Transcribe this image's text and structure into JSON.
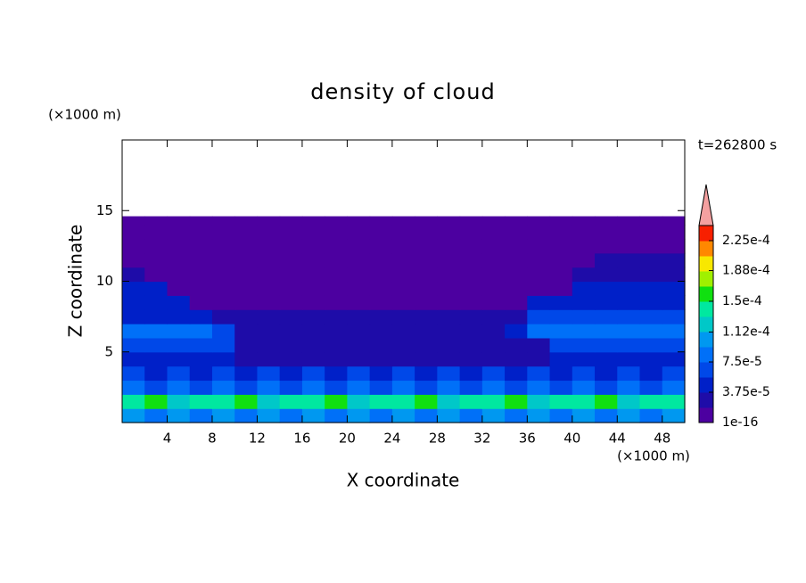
{
  "chart_data": {
    "type": "contour",
    "title": "density of cloud",
    "xlabel": "X coordinate",
    "ylabel": "Z coordinate",
    "xunit": "(×1000 m)",
    "yunit": "(×1000 m)",
    "time_label": "t=262800 s",
    "xlim": [
      0,
      50
    ],
    "ylim": [
      0,
      20
    ],
    "xticks": [
      4,
      8,
      12,
      16,
      20,
      24,
      28,
      32,
      36,
      40,
      44,
      48
    ],
    "yticks": [
      5,
      10,
      15
    ],
    "x_edges": [
      0,
      2,
      4,
      6,
      8,
      10,
      12,
      14,
      16,
      18,
      20,
      22,
      24,
      26,
      28,
      30,
      32,
      34,
      36,
      38,
      40,
      42,
      44,
      46,
      48,
      50
    ],
    "z_edges": [
      0,
      1,
      2,
      3,
      4,
      5,
      6,
      7,
      8,
      9,
      10,
      11,
      12,
      13,
      14,
      14.6
    ],
    "values": [
      [
        0.0001,
        8e-05,
        0.0001,
        9e-05,
        0.0001,
        8e-05,
        0.0001,
        9e-05,
        0.0001,
        8e-05,
        0.0001,
        9e-05,
        0.0001,
        8e-05,
        0.0001,
        9e-05,
        0.0001,
        8e-05,
        0.0001,
        9e-05,
        0.0001,
        8e-05,
        0.0001,
        9e-05,
        0.0001
      ],
      [
        0.00014,
        0.00016,
        0.00013,
        0.00015,
        0.00014,
        0.00016,
        0.00013,
        0.00015,
        0.00014,
        0.00016,
        0.00013,
        0.00015,
        0.00014,
        0.00016,
        0.00013,
        0.00015,
        0.00014,
        0.00016,
        0.00013,
        0.00015,
        0.00014,
        0.00016,
        0.00013,
        0.00015,
        0.00014
      ],
      [
        9e-05,
        7e-05,
        9e-05,
        7e-05,
        9e-05,
        7e-05,
        9e-05,
        7e-05,
        9e-05,
        7e-05,
        9e-05,
        7e-05,
        9e-05,
        7e-05,
        9e-05,
        7e-05,
        9e-05,
        7e-05,
        9e-05,
        7e-05,
        9e-05,
        7e-05,
        9e-05,
        7e-05,
        9e-05
      ],
      [
        6e-05,
        5e-05,
        6e-05,
        5e-05,
        6e-05,
        5e-05,
        6e-05,
        5e-05,
        6e-05,
        5e-05,
        6e-05,
        5e-05,
        6e-05,
        5e-05,
        6e-05,
        5e-05,
        6e-05,
        5e-05,
        6e-05,
        5e-05,
        6e-05,
        5e-05,
        6e-05,
        5e-05,
        6e-05
      ],
      [
        4.5e-05,
        4.5e-05,
        4.5e-05,
        4.5e-05,
        4.5e-05,
        3e-05,
        3e-05,
        3e-05,
        3e-05,
        3e-05,
        3e-05,
        3e-05,
        3e-05,
        3e-05,
        3e-05,
        3e-05,
        3e-05,
        3e-05,
        3e-05,
        4.5e-05,
        4.5e-05,
        4.5e-05,
        4.5e-05,
        4.5e-05,
        4.5e-05
      ],
      [
        7e-05,
        7e-05,
        7e-05,
        7e-05,
        7e-05,
        2.5e-05,
        2.5e-05,
        2.5e-05,
        2.5e-05,
        2.5e-05,
        2.5e-05,
        2.5e-05,
        2.5e-05,
        2.5e-05,
        2.5e-05,
        2.5e-05,
        2.5e-05,
        2.5e-05,
        2.5e-05,
        6e-05,
        6e-05,
        6e-05,
        6e-05,
        6e-05,
        6e-05
      ],
      [
        8e-05,
        8e-05,
        8e-05,
        8e-05,
        6e-05,
        2.5e-05,
        2.5e-05,
        2.5e-05,
        2.5e-05,
        2.5e-05,
        2.5e-05,
        2.5e-05,
        2.5e-05,
        2.5e-05,
        2.5e-05,
        2.5e-05,
        2.5e-05,
        5e-05,
        8e-05,
        8e-05,
        8e-05,
        8e-05,
        8e-05,
        8e-05,
        8e-05
      ],
      [
        5e-05,
        5e-05,
        5e-05,
        5e-05,
        2.5e-05,
        2.5e-05,
        2.5e-05,
        2.5e-05,
        2.5e-05,
        2.5e-05,
        2.5e-05,
        2.5e-05,
        2.5e-05,
        2.5e-05,
        2.5e-05,
        2.5e-05,
        2.5e-05,
        2.5e-05,
        6e-05,
        6e-05,
        6e-05,
        6e-05,
        6e-05,
        6e-05,
        6e-05
      ],
      [
        4.5e-05,
        4.5e-05,
        4.5e-05,
        1e-06,
        1e-06,
        1e-06,
        1e-06,
        1e-06,
        1e-06,
        1e-06,
        1e-06,
        1e-06,
        1e-06,
        1e-06,
        1e-06,
        1e-06,
        1e-06,
        1e-06,
        5e-05,
        5e-05,
        5e-05,
        5e-05,
        5e-05,
        5e-05,
        5e-05
      ],
      [
        4e-05,
        4e-05,
        1e-06,
        1e-06,
        1e-06,
        1e-06,
        1e-06,
        1e-06,
        1e-06,
        1e-06,
        1e-06,
        1e-06,
        1e-06,
        1e-06,
        1e-06,
        1e-06,
        1e-06,
        1e-06,
        1e-06,
        1e-06,
        4.5e-05,
        4.5e-05,
        4.5e-05,
        4.5e-05,
        4.5e-05
      ],
      [
        2.5e-05,
        1e-06,
        1e-06,
        1e-06,
        1e-06,
        1e-06,
        1e-06,
        1e-06,
        1e-06,
        1e-06,
        1e-06,
        1e-06,
        1e-06,
        1e-06,
        1e-06,
        1e-06,
        1e-06,
        1e-06,
        1e-06,
        1e-06,
        2.5e-05,
        3e-05,
        3e-05,
        3e-05,
        3e-05
      ],
      [
        1e-06,
        1e-06,
        1e-06,
        1e-06,
        1e-06,
        1e-06,
        1e-06,
        1e-06,
        1e-06,
        1e-06,
        1e-06,
        1e-06,
        1e-06,
        1e-06,
        1e-06,
        1e-06,
        1e-06,
        1e-06,
        1e-06,
        1e-06,
        1e-06,
        2.5e-05,
        2.5e-05,
        2.5e-05,
        2.5e-05
      ],
      [
        1e-06,
        1e-06,
        1e-06,
        1e-06,
        1e-06,
        1e-06,
        1e-06,
        1e-06,
        1e-06,
        1e-06,
        1e-06,
        1e-06,
        1e-06,
        1e-06,
        1e-06,
        1e-06,
        1e-06,
        1e-06,
        1e-06,
        1e-06,
        1e-06,
        1e-06,
        1e-06,
        1e-06,
        1e-06
      ],
      [
        1e-06,
        1e-06,
        1e-06,
        1e-06,
        1e-06,
        1e-06,
        1e-06,
        1e-06,
        1e-06,
        1e-06,
        1e-06,
        1e-06,
        1e-06,
        1e-06,
        1e-06,
        1e-06,
        1e-06,
        1e-06,
        1e-06,
        1e-06,
        1e-06,
        1e-06,
        1e-06,
        1e-06,
        1e-06
      ],
      [
        1e-06,
        1e-06,
        1e-06,
        1e-06,
        1e-06,
        1e-06,
        1e-06,
        1e-06,
        1e-06,
        1e-06,
        1e-06,
        1e-06,
        1e-06,
        1e-06,
        1e-06,
        1e-06,
        1e-06,
        1e-06,
        1e-06,
        1e-06,
        1e-06,
        1e-06,
        1e-06,
        1e-06,
        1e-06
      ]
    ],
    "clim": [
      1e-16,
      0.00024375
    ],
    "colors": [
      "#4c00a0",
      "#1e0ca8",
      "#0020c8",
      "#0048e8",
      "#0070f8",
      "#0098f0",
      "#00c8c8",
      "#00e8a0",
      "#10e010",
      "#a0f000",
      "#f8e800",
      "#ff8800",
      "#f82000"
    ],
    "over_color": "#f4a0a0",
    "colorbar_ticks": [
      1e-16,
      {
        "value": 3.75e-05,
        "label": "3.75e-5"
      },
      {
        "value": 7.5e-05,
        "label": "7.5e-5"
      },
      {
        "value": 0.000112,
        "label": "1.12e-4"
      },
      {
        "value": 0.00015,
        "label": "1.5e-4"
      },
      {
        "value": 0.000188,
        "label": "1.88e-4"
      },
      {
        "value": 0.000225,
        "label": "2.25e-4"
      }
    ]
  }
}
